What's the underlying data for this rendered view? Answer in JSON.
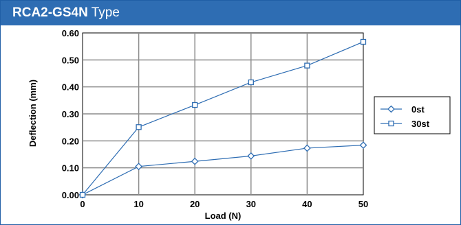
{
  "header": {
    "title_bold": "RCA2-GS4N",
    "title_rest": " Type",
    "background": "#2e6db3"
  },
  "chart_data": {
    "type": "line",
    "xlabel": "Load (N)",
    "ylabel": "Deflection (mm)",
    "x": [
      0,
      10,
      20,
      30,
      40,
      50
    ],
    "xlim": [
      0,
      50
    ],
    "ylim": [
      0,
      0.6
    ],
    "xticks": [
      "0",
      "10",
      "20",
      "30",
      "40",
      "50"
    ],
    "yticks": [
      "0.00",
      "0.10",
      "0.20",
      "0.30",
      "0.40",
      "0.50",
      "0.60"
    ],
    "grid": true,
    "legend_position": "right",
    "series": [
      {
        "name": "0st",
        "marker": "diamond",
        "color": "#2e6db3",
        "values": [
          0,
          0.105,
          0.124,
          0.144,
          0.173,
          0.184
        ]
      },
      {
        "name": "30st",
        "marker": "square",
        "color": "#2e6db3",
        "values": [
          0,
          0.251,
          0.333,
          0.417,
          0.479,
          0.567
        ]
      }
    ]
  }
}
